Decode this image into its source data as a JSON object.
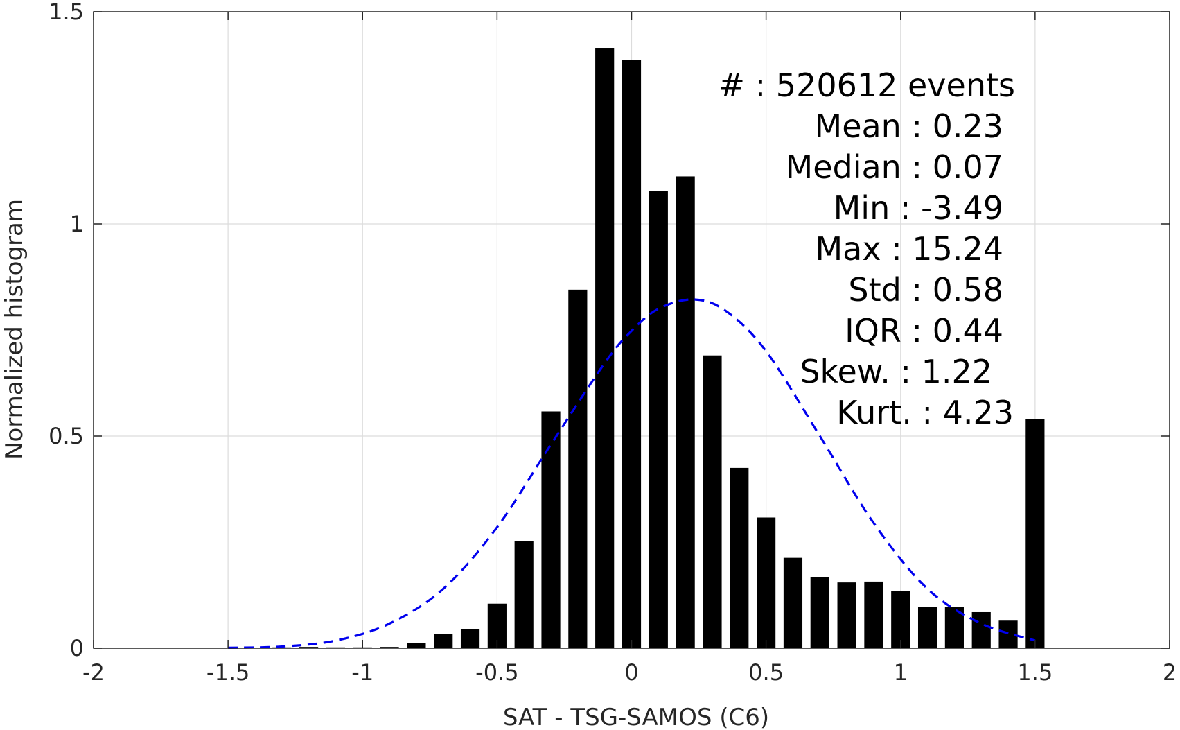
{
  "chart_data": {
    "type": "bar",
    "title": "",
    "xlabel": "SAT - TSG-SAMOS (C6)",
    "ylabel": "Normalized histogram",
    "xlim": [
      -2,
      2
    ],
    "ylim": [
      0,
      1.5
    ],
    "grid": true,
    "x_ticks": [
      "-2",
      "-1.5",
      "-1",
      "-0.5",
      "0",
      "0.5",
      "1",
      "1.5",
      "2"
    ],
    "y_ticks": [
      "0",
      "0.5",
      "1",
      "1.5"
    ],
    "x_tick_values": [
      -2,
      -1.5,
      -1,
      -0.5,
      0,
      0.5,
      1,
      1.5,
      2
    ],
    "y_tick_values": [
      0,
      0.5,
      1,
      1.5
    ],
    "bar_width": 0.07,
    "bar_color": "#000000",
    "bars": {
      "x": [
        -1.5,
        -1.4,
        -1.3,
        -1.2,
        -1.1,
        -1.0,
        -0.9,
        -0.8,
        -0.7,
        -0.6,
        -0.5,
        -0.4,
        -0.3,
        -0.2,
        -0.1,
        0.0,
        0.1,
        0.2,
        0.3,
        0.4,
        0.5,
        0.6,
        0.7,
        0.8,
        0.9,
        1.0,
        1.1,
        1.2,
        1.3,
        1.4,
        1.5
      ],
      "y": [
        0.001,
        0.001,
        0.002,
        0.003,
        0.002,
        0.002,
        0.003,
        0.013,
        0.033,
        0.045,
        0.105,
        0.252,
        0.558,
        0.845,
        1.415,
        1.387,
        1.078,
        1.112,
        0.69,
        0.425,
        0.308,
        0.213,
        0.168,
        0.155,
        0.157,
        0.135,
        0.097,
        0.098,
        0.085,
        0.065,
        0.54
      ]
    },
    "fit_curve": {
      "style": "dashed",
      "color": "#0000ee",
      "x": [
        -1.5,
        -1.3,
        -1.1,
        -0.9,
        -0.7,
        -0.5,
        -0.3,
        -0.1,
        0.0,
        0.1,
        0.23,
        0.35,
        0.5,
        0.7,
        0.9,
        1.1,
        1.3,
        1.5
      ],
      "y": [
        0.001,
        0.004,
        0.018,
        0.058,
        0.14,
        0.285,
        0.48,
        0.672,
        0.748,
        0.8,
        0.822,
        0.795,
        0.7,
        0.5,
        0.295,
        0.14,
        0.058,
        0.018
      ]
    },
    "annotations": [
      "#  : 520612 events",
      "Mean : 0.23",
      "Median : 0.07",
      "Min : -3.49",
      "Max : 15.24",
      "Std : 0.58",
      "IQR : 0.44",
      "Skew. : 1.22",
      "Kurt. : 4.23"
    ]
  }
}
